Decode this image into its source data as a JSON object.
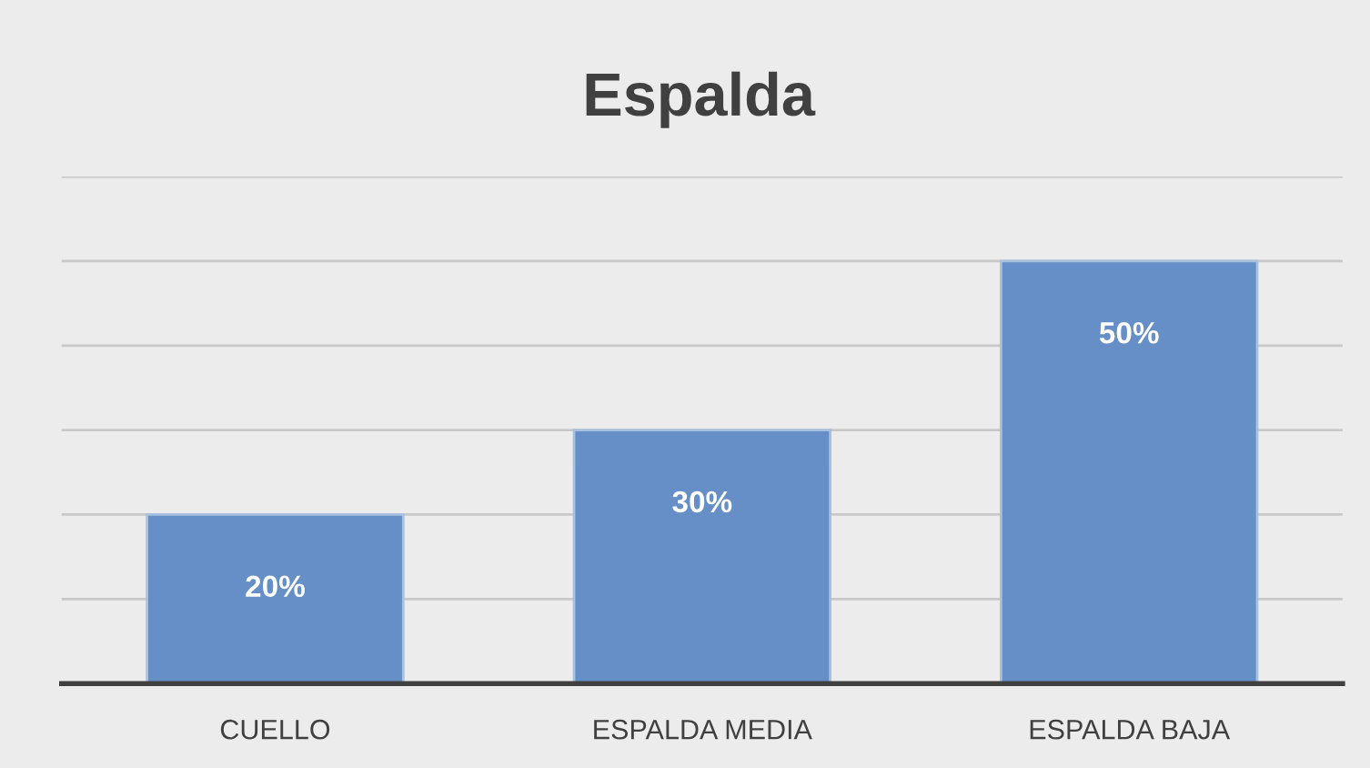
{
  "chart_data": {
    "type": "bar",
    "title": "Espalda",
    "categories": [
      "CUELLO",
      "ESPALDA MEDIA",
      "ESPALDA BAJA"
    ],
    "values": [
      20,
      30,
      50
    ],
    "value_labels": [
      "20%",
      "30%",
      "50%"
    ],
    "color": "#658fc6",
    "ylim": [
      0,
      60
    ],
    "yticks": [
      {
        "value": 0,
        "label": null
      },
      {
        "value": 10,
        "label": null
      },
      {
        "value": 20,
        "label": null
      },
      {
        "value": 30,
        "label": null
      },
      {
        "value": 40,
        "label": null
      },
      {
        "value": 50,
        "label": null
      },
      {
        "value": 60,
        "label": null
      }
    ],
    "grid": "y",
    "tick_labels": "x",
    "legend": false
  }
}
